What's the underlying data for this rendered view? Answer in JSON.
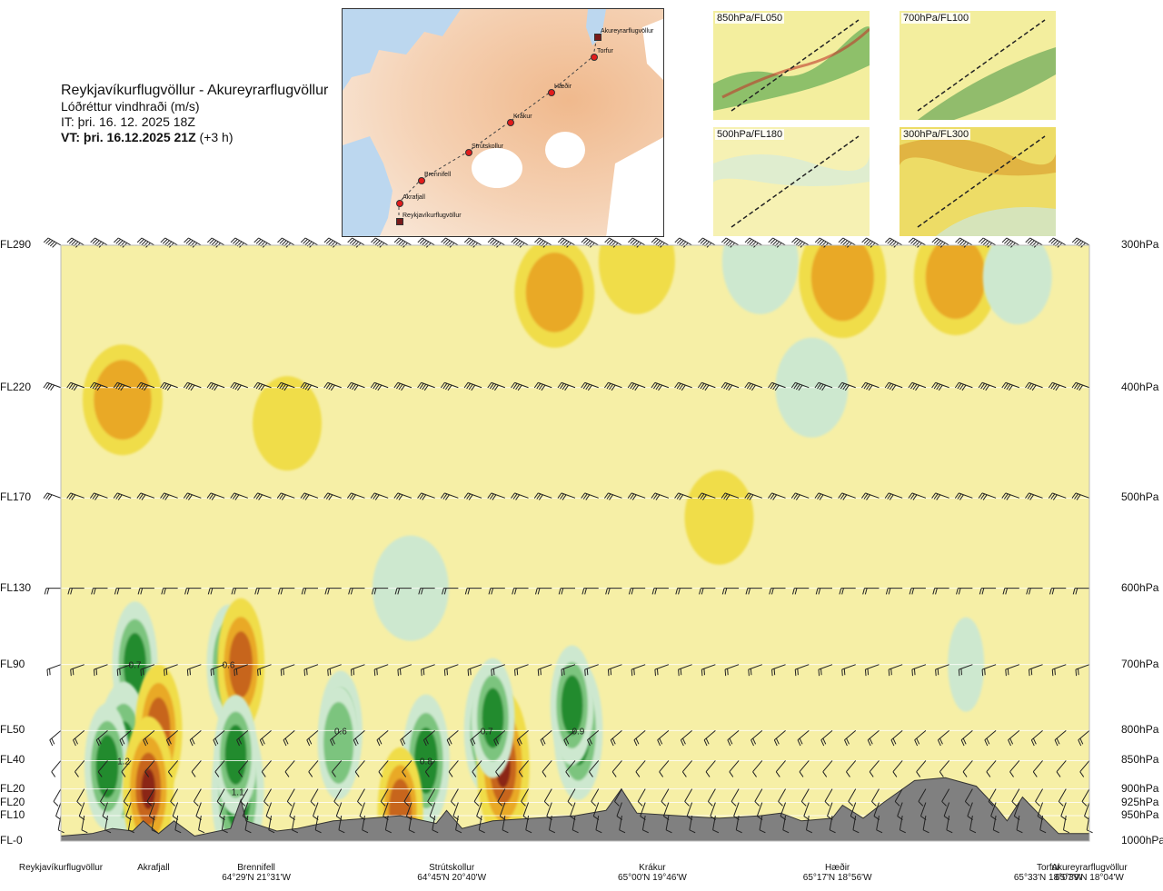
{
  "header": {
    "route": "Reykjavíkurflugvöllur - Akureyrarflugvöllur",
    "quantity": "Lóðréttur vindhraði (m/s)",
    "issue_time": "IT: þri. 16. 12. 2025 18Z",
    "valid_time_lead": "VT: þri. 16.12.2025 21Z",
    "valid_time_tail": " (+3 h)"
  },
  "route_map": {
    "points": [
      {
        "name": "Akureyrarflugvöllur",
        "kind": "airport"
      },
      {
        "name": "Torfur",
        "kind": "waypoint"
      },
      {
        "name": "Hæðir",
        "kind": "waypoint"
      },
      {
        "name": "Krákur",
        "kind": "waypoint"
      },
      {
        "name": "Strútskollur",
        "kind": "waypoint"
      },
      {
        "name": "Brennifell",
        "kind": "waypoint"
      },
      {
        "name": "Akrafjall",
        "kind": "waypoint"
      },
      {
        "name": "Reykjavíkurflugvöllur",
        "kind": "airport"
      }
    ]
  },
  "thumbnails": [
    {
      "label": "850hPa/FL050"
    },
    {
      "label": "700hPa/FL100"
    },
    {
      "label": "500hPa/FL180"
    },
    {
      "label": "300hPa/FL300"
    }
  ],
  "chart_data": {
    "type": "heatmap",
    "x_stations": [
      {
        "name": "Reykjavíkurflugvöllur",
        "coord": "",
        "pos": 0.0
      },
      {
        "name": "Akrafjall",
        "coord": "",
        "pos": 0.09
      },
      {
        "name": "Brennifell",
        "coord": "64°29'N 21°31'W",
        "pos": 0.19
      },
      {
        "name": "Strútskollur",
        "coord": "64°45'N 20°40'W",
        "pos": 0.38
      },
      {
        "name": "Krákur",
        "coord": "65°00'N 19°46'W",
        "pos": 0.575
      },
      {
        "name": "Hæðir",
        "coord": "65°17'N 18°56'W",
        "pos": 0.755
      },
      {
        "name": "Torfur",
        "coord": "65°33'N 18°07'W",
        "pos": 0.96
      },
      {
        "name": "Akureyrarflugvöllur",
        "coord": "65°39'N 18°04'W",
        "pos": 1.0
      }
    ],
    "levels": [
      {
        "fl": "FL290",
        "hpa": "300hPa",
        "p": 300
      },
      {
        "fl": "FL220",
        "hpa": "400hPa",
        "p": 400
      },
      {
        "fl": "FL170",
        "hpa": "500hPa",
        "p": 500
      },
      {
        "fl": "FL130",
        "hpa": "600hPa",
        "p": 600
      },
      {
        "fl": "FL90",
        "hpa": "700hPa",
        "p": 700
      },
      {
        "fl": "FL50",
        "hpa": "800hPa",
        "p": 800
      },
      {
        "fl": "FL40",
        "hpa": "850hPa",
        "p": 850
      },
      {
        "fl": "FL20",
        "hpa": "900hPa",
        "p": 900
      },
      {
        "fl": "FL20",
        "hpa": "925hPa",
        "p": 925
      },
      {
        "fl": "FL10",
        "hpa": "950hPa",
        "p": 950
      },
      {
        "fl": "FL-0",
        "hpa": "1000hPa",
        "p": 1000
      }
    ],
    "p_range": [
      300,
      1000
    ],
    "annotations": [
      {
        "text": "0.7",
        "pos": 0.072,
        "p": 700
      },
      {
        "text": "0.6",
        "pos": 0.163,
        "p": 700
      },
      {
        "text": "1.2",
        "pos": 0.061,
        "p": 850
      },
      {
        "text": "1.1",
        "pos": 0.172,
        "p": 905
      },
      {
        "text": "0.6",
        "pos": 0.272,
        "p": 800
      },
      {
        "text": "0.8",
        "pos": 0.355,
        "p": 850
      },
      {
        "text": "0.7",
        "pos": 0.414,
        "p": 800
      },
      {
        "text": "0.9",
        "pos": 0.503,
        "p": 800
      }
    ],
    "features": [
      {
        "pos": 0.072,
        "p": 700,
        "w": 0.7
      },
      {
        "pos": 0.163,
        "p": 700,
        "w": 0.6
      },
      {
        "pos": 0.061,
        "p": 850,
        "w": 1.2
      },
      {
        "pos": 0.172,
        "p": 905,
        "w": 1.1
      },
      {
        "pos": 0.272,
        "p": 800,
        "w": 0.6
      },
      {
        "pos": 0.355,
        "p": 850,
        "w": 0.8
      },
      {
        "pos": 0.414,
        "p": 800,
        "w": 0.7
      },
      {
        "pos": 0.503,
        "p": 800,
        "w": 0.9
      },
      {
        "pos": 0.045,
        "p": 860,
        "w": 0.7
      },
      {
        "pos": 0.095,
        "p": 800,
        "w": -0.8
      },
      {
        "pos": 0.085,
        "p": 900,
        "w": -1.0
      },
      {
        "pos": 0.175,
        "p": 700,
        "w": -0.8
      },
      {
        "pos": 0.17,
        "p": 840,
        "w": 0.6
      },
      {
        "pos": 0.27,
        "p": 820,
        "w": 0.5
      },
      {
        "pos": 0.33,
        "p": 940,
        "w": -0.7
      },
      {
        "pos": 0.43,
        "p": 860,
        "w": -1.1
      },
      {
        "pos": 0.42,
        "p": 780,
        "w": 0.6
      },
      {
        "pos": 0.497,
        "p": 760,
        "w": 0.6
      },
      {
        "pos": 0.06,
        "p": 410,
        "w": -0.35
      },
      {
        "pos": 0.22,
        "p": 430,
        "w": -0.2
      },
      {
        "pos": 0.48,
        "p": 330,
        "w": -0.35
      },
      {
        "pos": 0.56,
        "p": 310,
        "w": -0.3
      },
      {
        "pos": 0.68,
        "p": 310,
        "w": 0.3
      },
      {
        "pos": 0.76,
        "p": 320,
        "w": -0.45
      },
      {
        "pos": 0.87,
        "p": 320,
        "w": -0.4
      },
      {
        "pos": 0.93,
        "p": 320,
        "w": 0.2
      },
      {
        "pos": 0.73,
        "p": 400,
        "w": 0.25
      },
      {
        "pos": 0.34,
        "p": 600,
        "w": 0.3
      },
      {
        "pos": 0.64,
        "p": 520,
        "w": -0.2
      },
      {
        "pos": 0.88,
        "p": 700,
        "w": 0.2
      }
    ],
    "terrain": [
      [
        0.0,
        990
      ],
      [
        0.03,
        985
      ],
      [
        0.05,
        975
      ],
      [
        0.07,
        980
      ],
      [
        0.08,
        960
      ],
      [
        0.095,
        985
      ],
      [
        0.11,
        960
      ],
      [
        0.13,
        990
      ],
      [
        0.165,
        975
      ],
      [
        0.175,
        920
      ],
      [
        0.18,
        960
      ],
      [
        0.21,
        980
      ],
      [
        0.23,
        975
      ],
      [
        0.265,
        960
      ],
      [
        0.3,
        955
      ],
      [
        0.33,
        950
      ],
      [
        0.365,
        965
      ],
      [
        0.375,
        940
      ],
      [
        0.39,
        975
      ],
      [
        0.42,
        960
      ],
      [
        0.46,
        955
      ],
      [
        0.5,
        950
      ],
      [
        0.53,
        940
      ],
      [
        0.545,
        900
      ],
      [
        0.56,
        945
      ],
      [
        0.6,
        950
      ],
      [
        0.64,
        955
      ],
      [
        0.68,
        950
      ],
      [
        0.7,
        945
      ],
      [
        0.72,
        960
      ],
      [
        0.75,
        955
      ],
      [
        0.76,
        930
      ],
      [
        0.78,
        955
      ],
      [
        0.8,
        925
      ],
      [
        0.83,
        885
      ],
      [
        0.86,
        880
      ],
      [
        0.89,
        895
      ],
      [
        0.91,
        935
      ],
      [
        0.92,
        960
      ],
      [
        0.935,
        915
      ],
      [
        0.95,
        945
      ],
      [
        0.97,
        985
      ],
      [
        1.0,
        985
      ]
    ],
    "wind_barbs": [
      {
        "p": 300,
        "dir": 300,
        "kt": 60
      },
      {
        "p": 400,
        "dir": 290,
        "kt": 40
      },
      {
        "p": 500,
        "dir": 290,
        "kt": 25
      },
      {
        "p": 600,
        "dir": 270,
        "kt": 20
      },
      {
        "p": 700,
        "dir": 250,
        "kt": 15
      },
      {
        "p": 800,
        "dir": 230,
        "kt": 15
      },
      {
        "p": 850,
        "dir": 220,
        "kt": 10
      },
      {
        "p": 900,
        "dir": 210,
        "kt": 10
      },
      {
        "p": 925,
        "dir": 200,
        "kt": 5
      },
      {
        "p": 950,
        "dir": 190,
        "kt": 5
      }
    ],
    "colors": {
      "background": "#f6efa6",
      "up_light": "#cde8cf",
      "up_mid": "#7cc47e",
      "up_strong": "#208b2e",
      "up_max": "#5d78d6",
      "down_light": "#f0dd4a",
      "down_mid": "#e9a928",
      "down_strong": "#c7651c",
      "down_max": "#8b2515",
      "terrain": "#808080"
    }
  }
}
